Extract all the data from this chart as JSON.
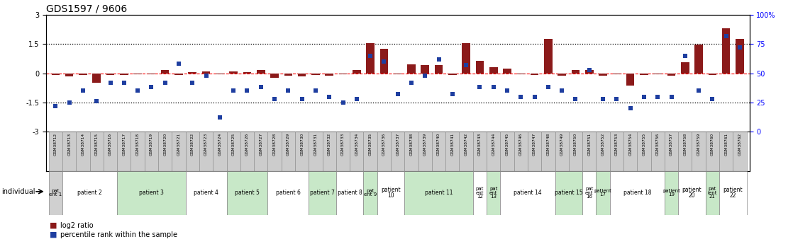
{
  "title": "GDS1597 / 9606",
  "samples": [
    "GSM38712",
    "GSM38713",
    "GSM38714",
    "GSM38715",
    "GSM38716",
    "GSM38717",
    "GSM38718",
    "GSM38719",
    "GSM38720",
    "GSM38721",
    "GSM38722",
    "GSM38723",
    "GSM38724",
    "GSM38725",
    "GSM38726",
    "GSM38727",
    "GSM38728",
    "GSM38729",
    "GSM38730",
    "GSM38731",
    "GSM38732",
    "GSM38733",
    "GSM38734",
    "GSM38735",
    "GSM38736",
    "GSM38737",
    "GSM38738",
    "GSM38739",
    "GSM38740",
    "GSM38741",
    "GSM38742",
    "GSM38743",
    "GSM38744",
    "GSM38745",
    "GSM38746",
    "GSM38747",
    "GSM38748",
    "GSM38749",
    "GSM38750",
    "GSM38751",
    "GSM38752",
    "GSM38753",
    "GSM38754",
    "GSM38755",
    "GSM38756",
    "GSM38757",
    "GSM38758",
    "GSM38759",
    "GSM38760",
    "GSM38761",
    "GSM38762"
  ],
  "log2_ratio": [
    -0.08,
    -0.18,
    -0.1,
    -0.5,
    -0.08,
    -0.08,
    -0.05,
    -0.05,
    0.15,
    -0.08,
    0.06,
    0.1,
    -0.05,
    0.08,
    0.06,
    0.15,
    -0.22,
    -0.12,
    -0.18,
    -0.08,
    -0.12,
    -0.05,
    0.15,
    1.55,
    1.25,
    -0.05,
    0.45,
    0.4,
    0.4,
    -0.08,
    1.55,
    0.65,
    0.3,
    0.22,
    -0.05,
    -0.08,
    1.75,
    -0.12,
    0.18,
    0.15,
    -0.12,
    -0.05,
    -0.62,
    -0.08,
    -0.05,
    -0.12,
    0.55,
    1.45,
    -0.08,
    2.3,
    1.75
  ],
  "percentile": [
    22,
    25,
    35,
    26,
    42,
    42,
    35,
    38,
    42,
    58,
    42,
    48,
    12,
    35,
    35,
    38,
    28,
    35,
    28,
    35,
    30,
    25,
    28,
    65,
    60,
    32,
    42,
    48,
    62,
    32,
    57,
    38,
    38,
    35,
    30,
    30,
    38,
    35,
    28,
    53,
    28,
    28,
    20,
    30,
    30,
    30,
    65,
    35,
    28,
    82,
    72
  ],
  "patients": [
    {
      "label": "pat\nent 1",
      "start": 0,
      "end": 1,
      "color": "#d0d0d0"
    },
    {
      "label": "patient 2",
      "start": 1,
      "end": 5,
      "color": "#ffffff"
    },
    {
      "label": "patient 3",
      "start": 5,
      "end": 10,
      "color": "#c8e8c8"
    },
    {
      "label": "patient 4",
      "start": 10,
      "end": 13,
      "color": "#ffffff"
    },
    {
      "label": "patient 5",
      "start": 13,
      "end": 16,
      "color": "#c8e8c8"
    },
    {
      "label": "patient 6",
      "start": 16,
      "end": 19,
      "color": "#ffffff"
    },
    {
      "label": "patient 7",
      "start": 19,
      "end": 21,
      "color": "#c8e8c8"
    },
    {
      "label": "patient 8",
      "start": 21,
      "end": 23,
      "color": "#ffffff"
    },
    {
      "label": "pat\nent 9",
      "start": 23,
      "end": 24,
      "color": "#c8e8c8"
    },
    {
      "label": "patient\n10",
      "start": 24,
      "end": 26,
      "color": "#ffffff"
    },
    {
      "label": "patient 11",
      "start": 26,
      "end": 31,
      "color": "#c8e8c8"
    },
    {
      "label": "pat\nent\n12",
      "start": 31,
      "end": 32,
      "color": "#ffffff"
    },
    {
      "label": "pat\nent\n13",
      "start": 32,
      "end": 33,
      "color": "#c8e8c8"
    },
    {
      "label": "patient 14",
      "start": 33,
      "end": 37,
      "color": "#ffffff"
    },
    {
      "label": "patient 15",
      "start": 37,
      "end": 39,
      "color": "#c8e8c8"
    },
    {
      "label": "pat\nent\n16",
      "start": 39,
      "end": 40,
      "color": "#ffffff"
    },
    {
      "label": "patient\n17",
      "start": 40,
      "end": 41,
      "color": "#c8e8c8"
    },
    {
      "label": "patient 18",
      "start": 41,
      "end": 45,
      "color": "#ffffff"
    },
    {
      "label": "patient\n19",
      "start": 45,
      "end": 46,
      "color": "#c8e8c8"
    },
    {
      "label": "patient\n20",
      "start": 46,
      "end": 48,
      "color": "#ffffff"
    },
    {
      "label": "pat\nient\n21",
      "start": 48,
      "end": 49,
      "color": "#c8e8c8"
    },
    {
      "label": "patient\n22",
      "start": 49,
      "end": 51,
      "color": "#ffffff"
    }
  ],
  "bar_color": "#8B1A1A",
  "scatter_color": "#1E3EA0",
  "title_fontsize": 10,
  "gsm_bg": "#cccccc",
  "gsm_edge": "#888888"
}
